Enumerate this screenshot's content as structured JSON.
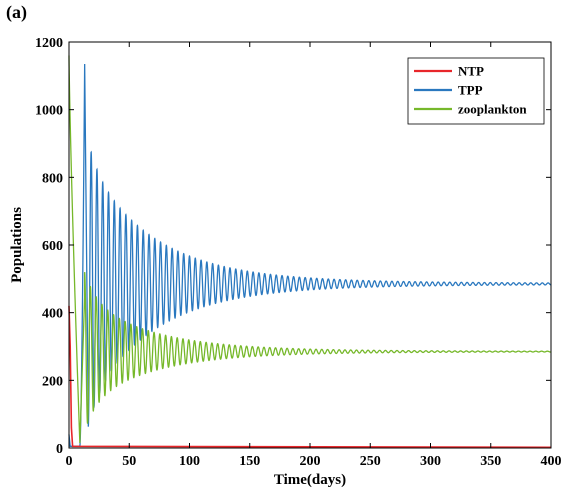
{
  "panel_label": "(a)",
  "chart_data": {
    "type": "line",
    "title": "",
    "xlabel": "Time(days)",
    "ylabel": "Populations",
    "xlim": [
      0,
      400
    ],
    "ylim": [
      0,
      1200
    ],
    "xticks": [
      0,
      50,
      100,
      150,
      200,
      250,
      300,
      350,
      400
    ],
    "yticks": [
      0,
      200,
      400,
      600,
      800,
      1000,
      1200
    ],
    "grid": false,
    "legend_position": "top-right",
    "series": [
      {
        "name": "NTP",
        "color": "#e8262a",
        "description_points": [
          [
            0,
            420
          ],
          [
            1,
            300
          ],
          [
            2,
            60
          ],
          [
            3,
            5
          ],
          [
            400,
            2
          ]
        ],
        "equilibrium": 2
      },
      {
        "name": "TPP",
        "color": "#2a78bf",
        "start": 40,
        "equilibrium": 485,
        "first_peak": [
          13,
          1135
        ],
        "early_min": [
          16,
          80
        ],
        "period_days": 4.8,
        "decay_days": 55
      },
      {
        "name": "zooplankton",
        "color": "#76b82a",
        "start": 1160,
        "equilibrium": 285,
        "early_min": [
          9,
          15
        ],
        "period_days": 4.8,
        "decay_days": 55
      }
    ]
  }
}
